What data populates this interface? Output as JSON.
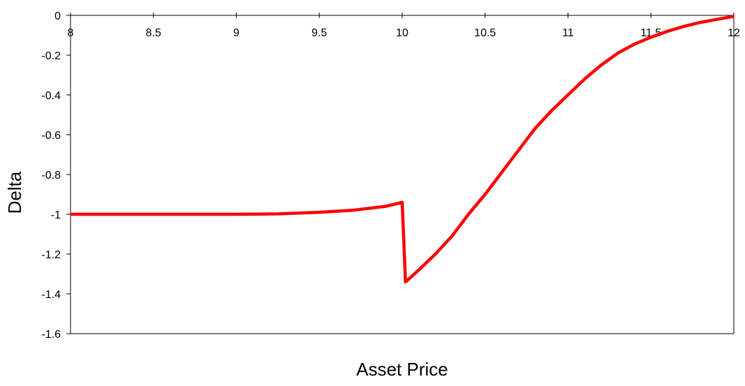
{
  "chart_data": {
    "type": "line",
    "x_label": "Asset Price",
    "y_label": "Delta",
    "series": [
      {
        "color": "#ff0000",
        "x": [
          8,
          8.5,
          9,
          9.25,
          9.5,
          9.7,
          9.8,
          9.9,
          10,
          10.02,
          10.1,
          10.2,
          10.3,
          10.4,
          10.5,
          10.6,
          10.7,
          10.8,
          10.9,
          11,
          11.1,
          11.2,
          11.3,
          11.4,
          11.5,
          11.6,
          11.7,
          11.8,
          11.9,
          12
        ],
        "values": [
          -1,
          -1,
          -1,
          -0.998,
          -0.99,
          -0.98,
          -0.97,
          -0.96,
          -0.94,
          -1.34,
          -1.28,
          -1.2,
          -1.11,
          -1.0,
          -0.9,
          -0.79,
          -0.68,
          -0.57,
          -0.48,
          -0.4,
          -0.32,
          -0.25,
          -0.19,
          -0.145,
          -0.11,
          -0.08,
          -0.055,
          -0.035,
          -0.02,
          -0.005
        ]
      }
    ],
    "xlim": [
      8,
      12
    ],
    "xticks": [
      8,
      8.5,
      9,
      9.5,
      10,
      10.5,
      11,
      11.5,
      12
    ],
    "ylim": [
      -1.6,
      0
    ],
    "yticks": [
      0,
      -0.2,
      -0.4,
      -0.6,
      -0.8,
      -1,
      -1.2,
      -1.4,
      -1.6
    ]
  }
}
